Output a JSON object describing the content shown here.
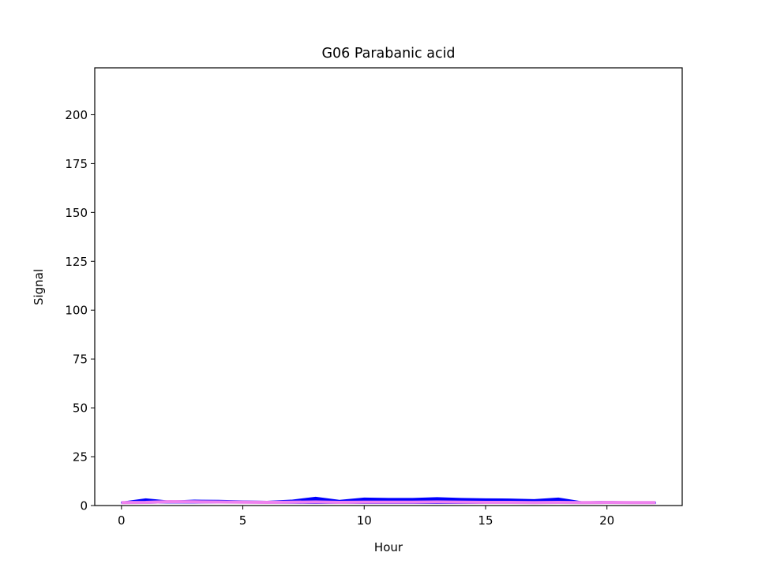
{
  "chart_data": {
    "type": "area",
    "title": "G06 Parabanic acid",
    "xlabel": "Hour",
    "ylabel": "Signal",
    "xlim": [
      -1.1,
      23.1
    ],
    "ylim": [
      0,
      224
    ],
    "xticks": [
      0,
      5,
      10,
      15,
      20
    ],
    "yticks": [
      0,
      25,
      50,
      75,
      100,
      125,
      150,
      175,
      200
    ],
    "grid": false,
    "legend": "none",
    "band": {
      "color": "#0000ff",
      "x": [
        0,
        1,
        2,
        3,
        4,
        5,
        6,
        7,
        8,
        9,
        10,
        11,
        12,
        13,
        14,
        15,
        16,
        17,
        18,
        19,
        20,
        21,
        22
      ],
      "upper": [
        1.8,
        3.5,
        2.3,
        2.8,
        2.7,
        2.4,
        2.2,
        2.8,
        4.3,
        2.7,
        3.9,
        3.7,
        3.7,
        4.1,
        3.7,
        3.5,
        3.4,
        3.1,
        3.9,
        1.9,
        2.2,
        1.8,
        1.7
      ],
      "lower": [
        1.2,
        1.1,
        1.3,
        1.2,
        1.2,
        1.2,
        1.2,
        1.1,
        1.0,
        1.1,
        1.0,
        1.0,
        1.0,
        1.0,
        1.0,
        1.0,
        1.0,
        1.0,
        1.0,
        1.1,
        1.1,
        1.1,
        1.1
      ]
    },
    "line": {
      "color": "#ee82ee",
      "x": [
        0,
        1,
        2,
        3,
        4,
        5,
        6,
        7,
        8,
        9,
        10,
        11,
        12,
        13,
        14,
        15,
        16,
        17,
        18,
        19,
        20,
        21,
        22
      ],
      "y": [
        1.5,
        1.6,
        2.0,
        1.9,
        1.8,
        1.7,
        1.6,
        1.7,
        1.8,
        1.6,
        1.7,
        1.7,
        1.7,
        1.8,
        1.7,
        1.6,
        1.6,
        1.5,
        1.6,
        1.5,
        1.6,
        1.5,
        1.5
      ]
    }
  }
}
